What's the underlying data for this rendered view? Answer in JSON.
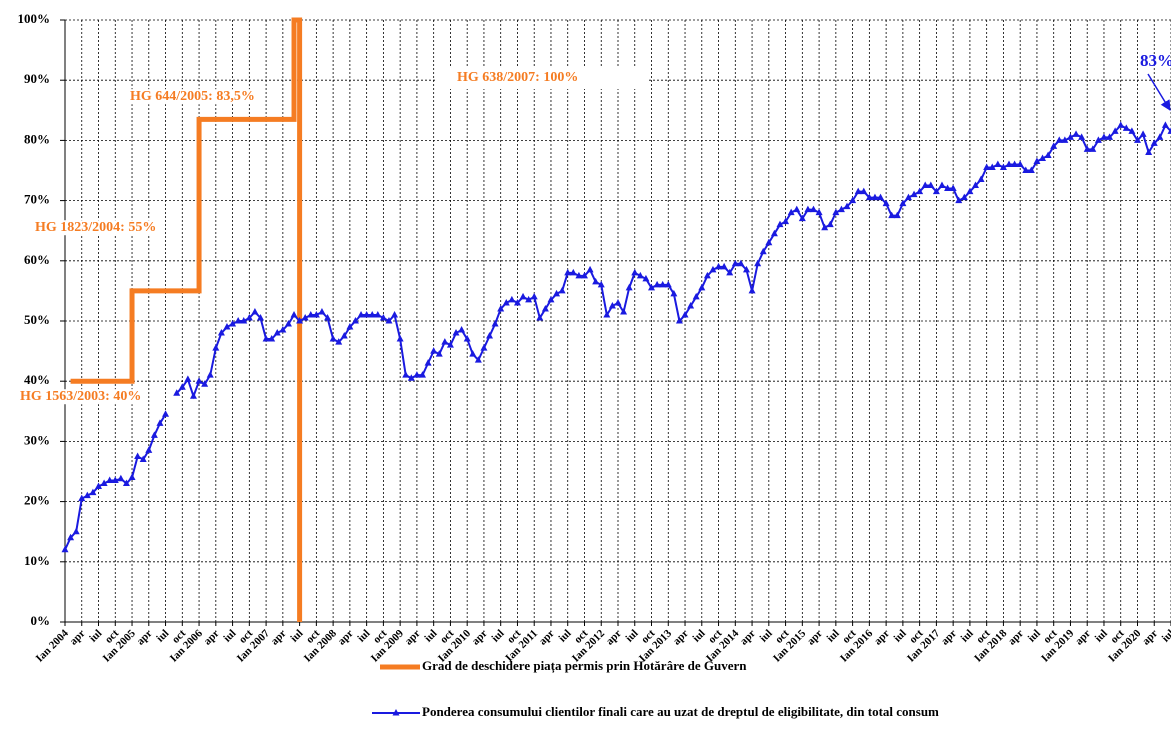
{
  "chart_data": {
    "type": "line",
    "ylim": [
      0,
      100
    ],
    "yticks": [
      {
        "value": 0,
        "label": "0%"
      },
      {
        "value": 10,
        "label": "10%"
      },
      {
        "value": 20,
        "label": "20%"
      },
      {
        "value": 30,
        "label": "30%"
      },
      {
        "value": 40,
        "label": "40%"
      },
      {
        "value": 50,
        "label": "50%"
      },
      {
        "value": 60,
        "label": "60%"
      },
      {
        "value": 70,
        "label": "70%"
      },
      {
        "value": 80,
        "label": "80%"
      },
      {
        "value": 90,
        "label": "90%"
      },
      {
        "value": 100,
        "label": "100%"
      }
    ],
    "grid": true,
    "legend": "bottom",
    "categories": [
      "Ian 2004",
      null,
      null,
      "apr",
      null,
      null,
      "iul",
      null,
      null,
      "oct",
      null,
      null,
      "Ian 2005",
      null,
      null,
      "apr",
      null,
      null,
      "iul",
      null,
      null,
      "oct",
      null,
      null,
      "Ian 2006",
      null,
      null,
      "apr",
      null,
      null,
      "iul",
      null,
      null,
      "oct",
      null,
      null,
      "Ian 2007",
      null,
      null,
      "apr",
      null,
      null,
      "iul",
      null,
      null,
      "oct",
      null,
      null,
      "Ian 2008",
      null,
      null,
      "apr",
      null,
      null,
      "iul",
      null,
      null,
      "oct",
      null,
      null,
      "Ian 2009",
      null,
      null,
      "apr",
      null,
      null,
      "iul",
      null,
      null,
      "oct",
      null,
      null,
      "Ian 2010",
      null,
      null,
      "apr",
      null,
      null,
      "iul",
      null,
      null,
      "oct",
      null,
      null,
      "Ian 2011",
      null,
      null,
      "apr",
      null,
      null,
      "iul",
      null,
      null,
      "oct",
      null,
      null,
      "Ian 2012",
      null,
      null,
      "apr",
      null,
      null,
      "iul",
      null,
      null,
      "oct",
      null,
      null,
      "Ian 2013",
      null,
      null,
      "apr",
      null,
      null,
      "iul",
      null,
      null,
      "oct",
      null,
      null,
      "Ian 2014",
      null,
      null,
      "apr",
      null,
      null,
      "iul",
      null,
      null,
      "oct",
      null,
      null,
      "Ian 2015",
      null,
      null,
      "apr",
      null,
      null,
      "iul",
      null,
      null,
      "oct",
      null,
      null,
      "Ian 2016",
      null,
      null,
      "apr",
      null,
      null,
      "iul",
      null,
      null,
      "oct",
      null,
      null,
      "Ian 2017",
      null,
      null,
      "apr",
      null,
      null,
      "iul",
      null,
      null,
      "oct",
      null,
      null,
      "Ian 2018",
      null,
      null,
      "apr",
      null,
      null,
      "iul",
      null,
      null,
      "oct",
      null,
      null,
      "Ian 2019",
      null,
      null,
      "apr",
      null,
      null,
      "iul",
      null,
      null,
      "oct",
      null,
      null,
      "Ian 2020",
      null,
      null,
      "apr",
      null,
      null,
      "iul"
    ],
    "series": [
      {
        "name": "Grad de deschidere piața permis prin Hotărâre de Guvern",
        "color": "#f57c22",
        "step": true,
        "markers": false,
        "values": [
          null,
          40,
          40,
          40,
          40,
          40,
          40,
          40,
          40,
          40,
          40,
          40,
          55,
          55,
          55,
          55,
          55,
          55,
          55,
          55,
          55,
          55,
          55,
          55,
          83.5,
          83.5,
          83.5,
          83.5,
          83.5,
          83.5,
          83.5,
          83.5,
          83.5,
          83.5,
          83.5,
          83.5,
          83.5,
          83.5,
          83.5,
          83.5,
          83.5,
          100,
          0,
          null,
          null,
          null,
          null,
          null,
          null,
          null,
          null,
          null,
          null,
          null,
          null,
          null,
          null,
          null,
          null,
          null,
          null,
          null,
          null,
          null,
          null,
          null,
          null,
          null,
          null,
          null,
          null,
          null,
          null,
          null,
          null,
          null,
          null,
          null,
          null,
          null,
          null,
          null,
          null,
          null,
          null,
          null,
          null,
          null,
          null,
          null,
          null,
          null,
          null,
          null,
          null,
          null,
          null,
          null,
          null,
          null,
          null,
          null,
          null,
          null,
          null,
          null,
          null,
          null,
          null,
          null,
          null,
          null,
          null,
          null,
          null,
          null,
          null,
          null,
          null,
          null,
          null,
          null,
          null,
          null,
          null,
          null,
          null,
          null,
          null,
          null,
          null,
          null,
          null,
          null,
          null,
          null,
          null,
          null,
          null,
          null,
          null,
          null,
          null,
          null,
          null,
          null,
          null,
          null,
          null,
          null,
          null,
          null,
          null,
          null,
          null,
          null,
          null,
          null,
          null,
          null,
          null,
          null,
          null,
          null,
          null,
          null,
          null,
          null,
          null,
          null,
          null,
          null,
          null,
          null,
          null,
          null,
          null,
          null,
          null,
          null,
          null,
          null,
          null,
          null,
          null,
          null,
          null,
          null,
          null,
          null,
          null,
          null,
          null,
          null,
          null,
          null,
          null,
          null,
          null
        ]
      },
      {
        "name": "Ponderea consumului clientilor finali care au uzat de dreptul de eligibilitate, din total consum",
        "color": "#1a1ae0",
        "step": false,
        "markers": true,
        "values": [
          12,
          14,
          15,
          20.5,
          21,
          21.5,
          22.5,
          23,
          23.5,
          23.5,
          23.8,
          23,
          24,
          27.5,
          27,
          28.5,
          31,
          33,
          34.5,
          null,
          38,
          39,
          40.3,
          37.5,
          40,
          39.5,
          41,
          45.5,
          48,
          49,
          49.5,
          50,
          50,
          50.5,
          51.5,
          50.5,
          47,
          47,
          48,
          48.5,
          49.5,
          51,
          50,
          50.5,
          51,
          51,
          51.5,
          50.5,
          47,
          46.5,
          47.5,
          49,
          50,
          51,
          51,
          51,
          51,
          50.5,
          50,
          51,
          47,
          41,
          40.5,
          41,
          41,
          43,
          45,
          44.5,
          46.5,
          46,
          48,
          48.5,
          47,
          44.5,
          43.5,
          45.5,
          47.5,
          49.5,
          52,
          53,
          53.5,
          53,
          54,
          53.5,
          54,
          50.5,
          52,
          53.5,
          54.5,
          55,
          58,
          58,
          57.5,
          57.5,
          58.5,
          56.5,
          56,
          51,
          52.5,
          53,
          51.5,
          55.5,
          58,
          57.5,
          57,
          55.5,
          56,
          56,
          56,
          54.5,
          50,
          51,
          52.5,
          54,
          55.5,
          57.5,
          58.5,
          59,
          59,
          58,
          59.5,
          59.5,
          58.5,
          55,
          59.5,
          61.5,
          63,
          64.5,
          66,
          66.5,
          68,
          68.5,
          67,
          68.5,
          68.5,
          68,
          65.5,
          66,
          68,
          68.5,
          69,
          70,
          71.5,
          71.5,
          70.5,
          70.5,
          70.5,
          69.5,
          67.5,
          67.5,
          69.5,
          70.5,
          71,
          71.5,
          72.5,
          72.5,
          71.5,
          72.5,
          72,
          72,
          70,
          70.5,
          71.5,
          72.5,
          73.5,
          75.5,
          75.5,
          76,
          75.5,
          76,
          76,
          76,
          75,
          75,
          76.5,
          77,
          77.5,
          79,
          80,
          80,
          80.5,
          81,
          80.5,
          78.5,
          78.5,
          80,
          80.5,
          80.5,
          81.5,
          82.5,
          82,
          81.5,
          80,
          81,
          78,
          79.5,
          80.5,
          82.5,
          81.5
        ]
      }
    ],
    "annotations": [
      "HG 1563/2003: 40%",
      "HG 1823/2004:  55%",
      "HG 644/2005:  83,5%",
      "HG 638/2007: 100%",
      "83%"
    ]
  }
}
